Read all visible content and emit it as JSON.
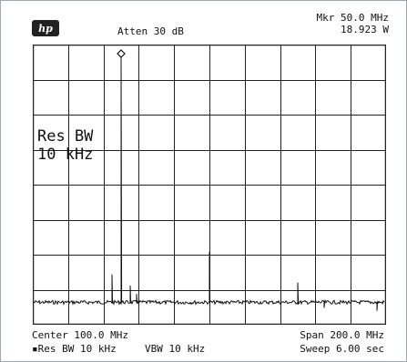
{
  "header": {
    "logo_text": "hp",
    "atten": "Atten 30 dB",
    "marker_label": "Mkr 50.0 MHz",
    "marker_value": "18.923  W"
  },
  "overlay": {
    "res_bw_line1": "Res BW",
    "res_bw_line2": "10 kHz"
  },
  "footer": {
    "center": "Center 100.0 MHz",
    "res_bw": "▪Res BW 10 kHz",
    "vbw": "VBW 10 kHz",
    "span": "Span 200.0 MHz",
    "sweep": "Sweep 6.00  sec"
  },
  "colors": {
    "grid": "#222222",
    "trace": "#111111"
  },
  "chart_data": {
    "type": "line",
    "x_center_mhz": 100.0,
    "x_span_mhz": 200.0,
    "xlim": [
      0,
      200
    ],
    "grid_divisions": [
      10,
      8
    ],
    "marker_x_mhz": 50.0,
    "peaks": [
      {
        "x": 50,
        "level": 0.97
      },
      {
        "x": 45,
        "level": 0.18
      },
      {
        "x": 55,
        "level": 0.14
      },
      {
        "x": 59,
        "level": 0.11
      },
      {
        "x": 100,
        "level": 0.26
      },
      {
        "x": 150,
        "level": 0.15
      },
      {
        "x": 165,
        "level": 0.06
      },
      {
        "x": 195,
        "level": 0.05
      }
    ],
    "noise_floor_level": 0.08
  }
}
